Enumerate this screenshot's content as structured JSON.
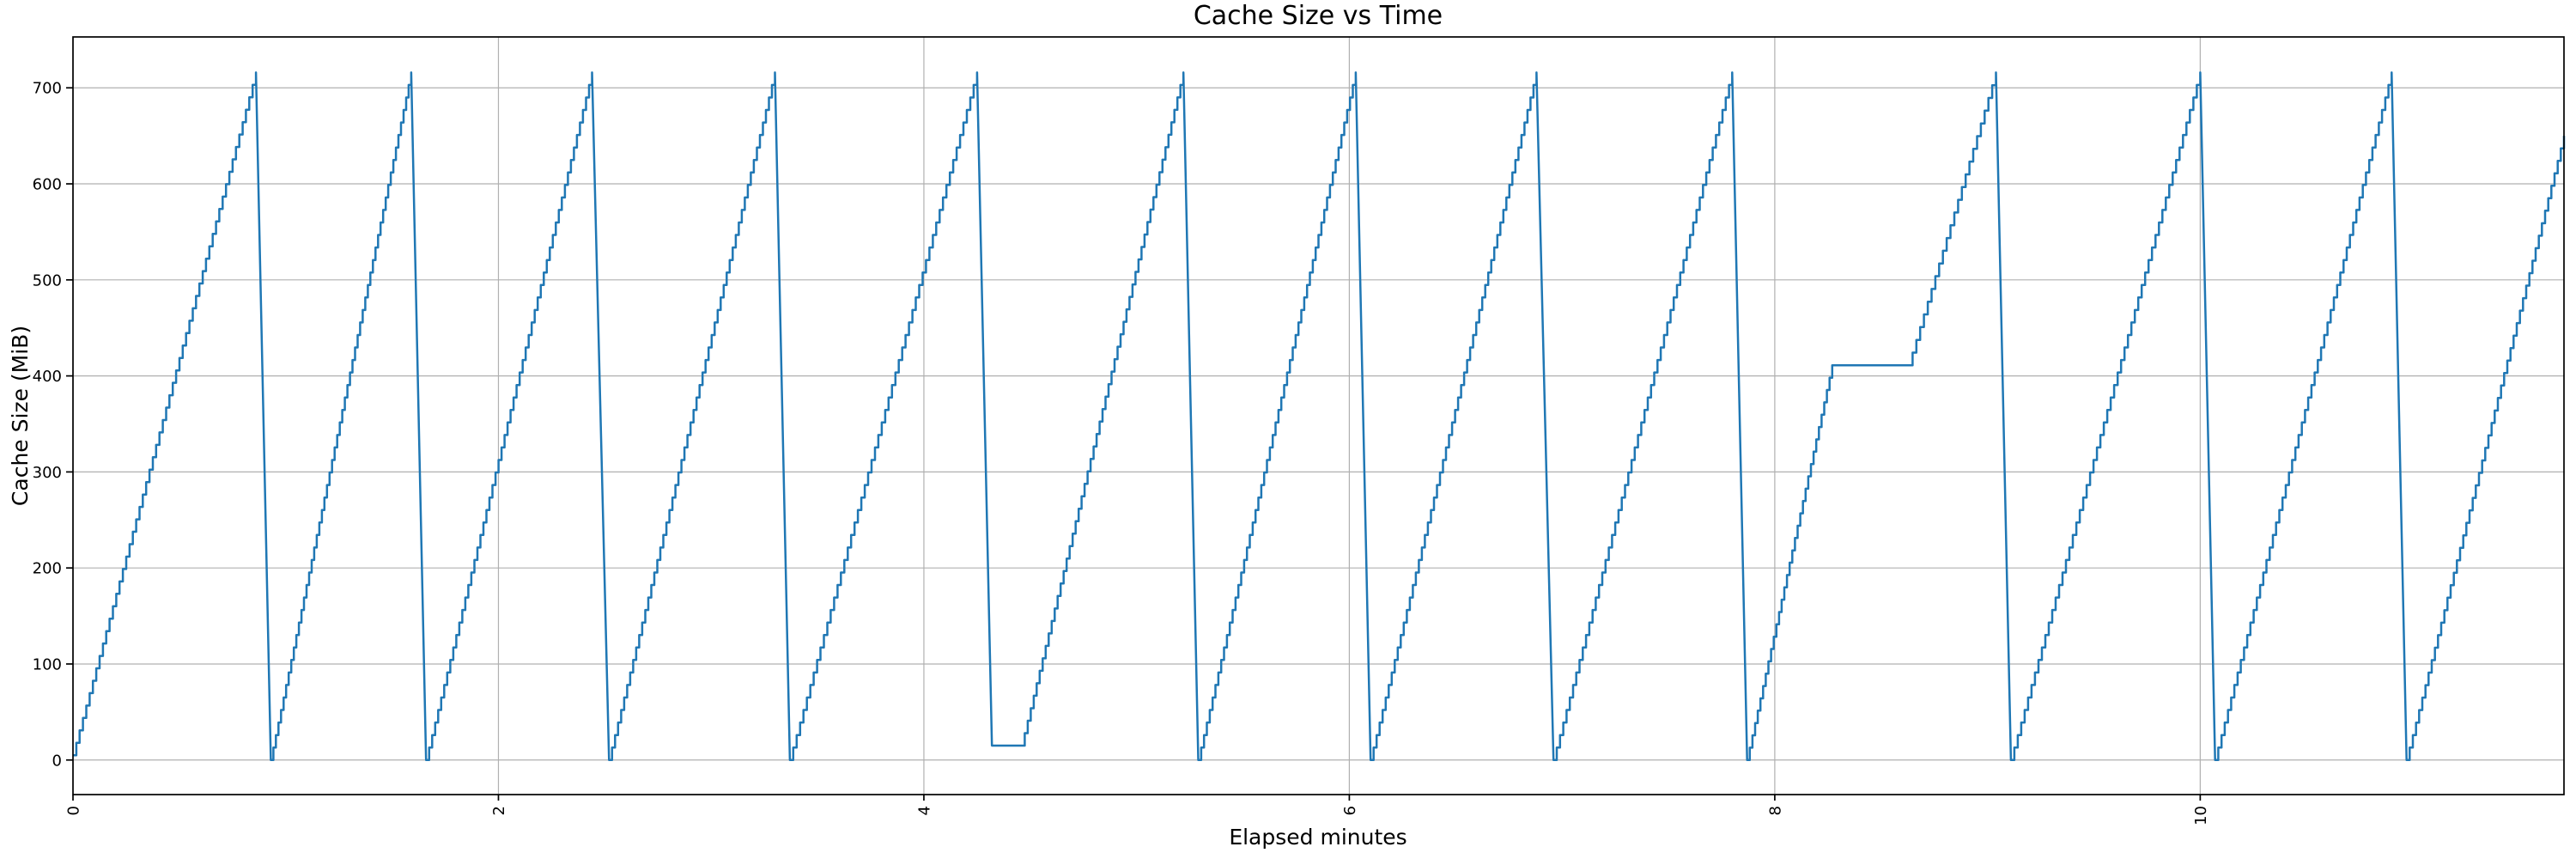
{
  "chart_data": {
    "type": "line",
    "title": "Cache Size vs Time",
    "xlabel": "Elapsed minutes",
    "ylabel": "Cache Size (MiB)",
    "xlim": [
      0,
      11.71
    ],
    "ylim": [
      -36,
      753
    ],
    "x_ticks": [
      0,
      2,
      4,
      6,
      8,
      10
    ],
    "x_tick_labels": [
      "0",
      "2",
      "4",
      "6",
      "8",
      "10"
    ],
    "x_tick_rotation_deg": 90,
    "y_ticks": [
      0,
      100,
      200,
      300,
      400,
      500,
      600,
      700
    ],
    "y_tick_labels": [
      "0",
      "100",
      "200",
      "300",
      "400",
      "500",
      "600",
      "700"
    ],
    "grid": true,
    "grid_color": "#b0b0b0",
    "line_color": "#1f77b4",
    "spine_color": "#000000",
    "background_color": "#ffffff",
    "line_style": "staircase-sawtooth",
    "step_height_mib": 13,
    "series": [
      {
        "name": "cache size",
        "description": "Sawtooth: staircase ramps to ~716 MiB then sharp drop to 0; one low plateau at 15 MiB after the 5th drop and one mid-rise plateau at 411 MiB in the 10th tooth; final ramp cut off at right edge at ~650 MiB.",
        "vertices": [
          [
            0.0,
            5
          ],
          [
            0.86,
            716
          ],
          [
            0.93,
            0
          ],
          [
            1.59,
            716
          ],
          [
            1.66,
            0
          ],
          [
            2.44,
            716
          ],
          [
            2.52,
            0
          ],
          [
            3.3,
            716
          ],
          [
            3.37,
            0
          ],
          [
            4.25,
            716
          ],
          [
            4.32,
            15
          ],
          [
            4.46,
            15
          ],
          [
            5.22,
            716
          ],
          [
            5.29,
            0
          ],
          [
            6.03,
            716
          ],
          [
            6.1,
            0
          ],
          [
            6.88,
            716
          ],
          [
            6.96,
            0
          ],
          [
            7.8,
            716
          ],
          [
            7.87,
            0
          ],
          [
            8.27,
            411
          ],
          [
            8.63,
            411
          ],
          [
            9.04,
            716
          ],
          [
            9.11,
            0
          ],
          [
            10.0,
            716
          ],
          [
            10.07,
            0
          ],
          [
            10.9,
            716
          ],
          [
            10.97,
            0
          ],
          [
            11.71,
            650
          ]
        ]
      }
    ],
    "legend": null
  }
}
